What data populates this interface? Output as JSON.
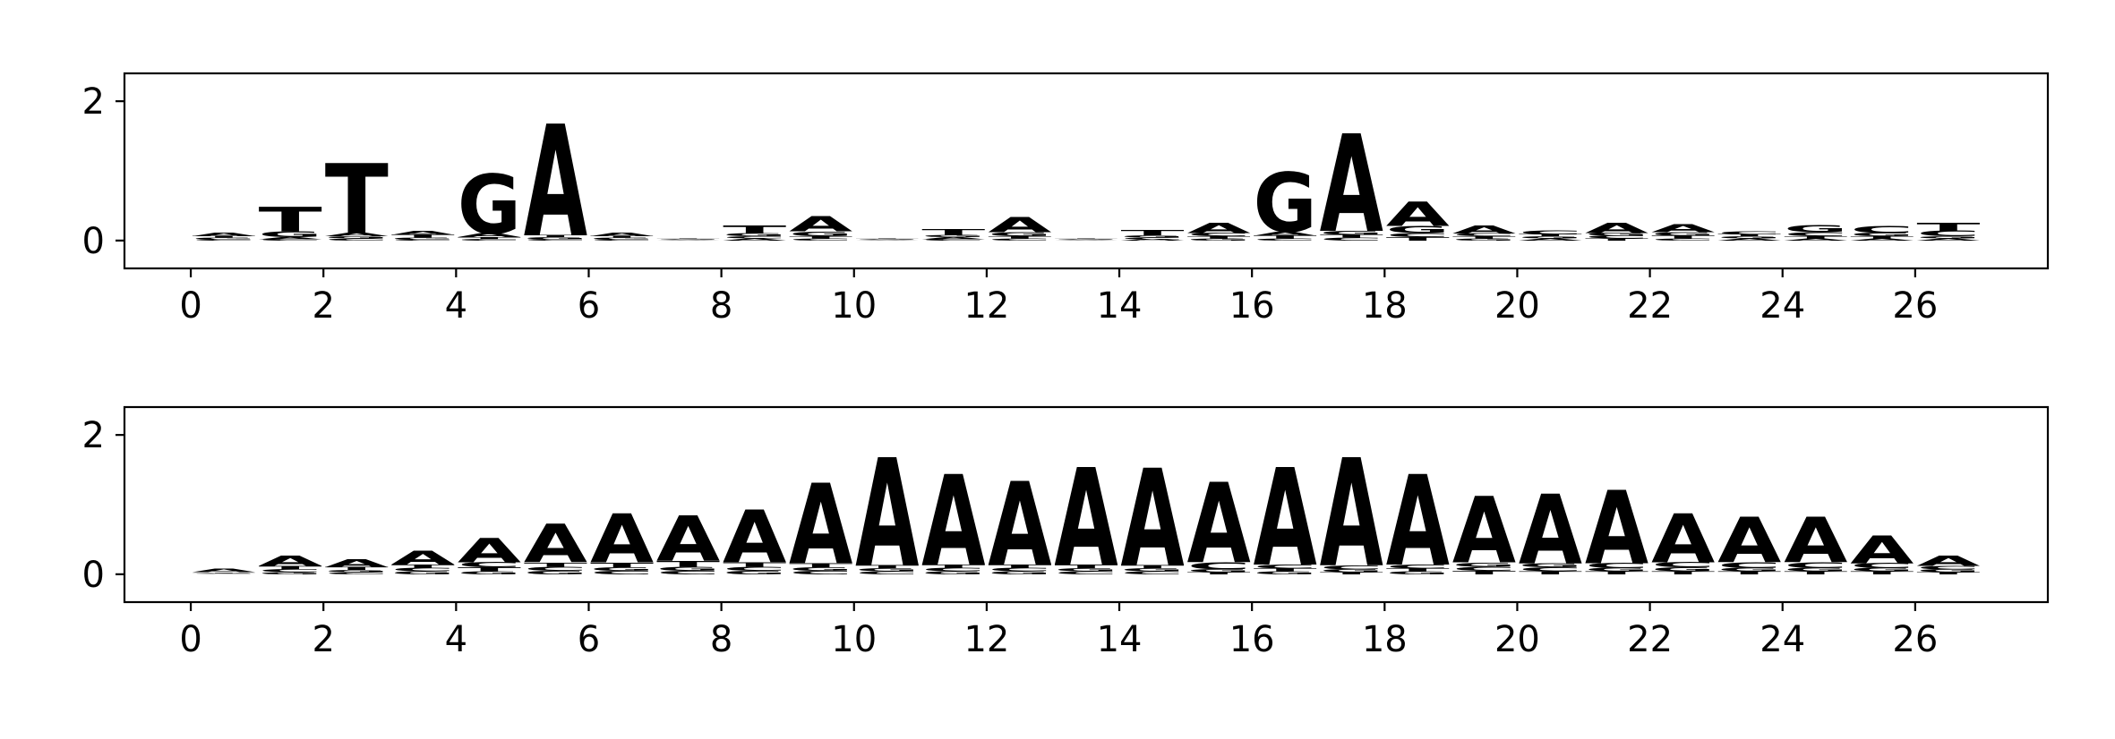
{
  "chart_data": [
    {
      "type": "sequence-logo",
      "title": "",
      "xlabel": "",
      "ylabel": "",
      "xlim": [
        -1,
        28
      ],
      "ylim": [
        -0.4,
        2.4
      ],
      "xticks": [
        0,
        2,
        4,
        6,
        8,
        10,
        12,
        14,
        16,
        18,
        20,
        22,
        24,
        26
      ],
      "yticks": [
        0,
        2
      ],
      "letter_colors": {
        "A": "#008000",
        "C": "#0000ff",
        "G": "#ffa500",
        "T": "#ff0000"
      },
      "positions": [
        {
          "x": 0,
          "A": 0.05,
          "C": 0.02,
          "G": 0.02,
          "T": 0.02
        },
        {
          "x": 1,
          "A": 0.03,
          "C": 0.02,
          "G": 0.08,
          "T": 0.35
        },
        {
          "x": 2,
          "A": 0.05,
          "C": 0.03,
          "G": 0.03,
          "T": 1.0
        },
        {
          "x": 3,
          "A": 0.06,
          "C": 0.02,
          "G": 0.02,
          "T": 0.04
        },
        {
          "x": 4,
          "A": 0.06,
          "C": 0.02,
          "G": 0.85,
          "T": 0.03
        },
        {
          "x": 5,
          "A": 1.6,
          "C": 0.02,
          "G": 0.03,
          "T": 0.03
        },
        {
          "x": 6,
          "A": 0.05,
          "C": 0.02,
          "G": 0.02,
          "T": 0.02
        },
        {
          "x": 7,
          "A": 0.01,
          "C": 0.01,
          "G": 0.01,
          "T": 0.01
        },
        {
          "x": 8,
          "A": 0.03,
          "C": 0.03,
          "G": 0.04,
          "T": 0.12
        },
        {
          "x": 9,
          "A": 0.22,
          "C": 0.03,
          "G": 0.07,
          "T": 0.03
        },
        {
          "x": 10,
          "A": 0.01,
          "C": 0.01,
          "G": 0.01,
          "T": 0.01
        },
        {
          "x": 11,
          "A": 0.03,
          "C": 0.02,
          "G": 0.03,
          "T": 0.08
        },
        {
          "x": 12,
          "A": 0.22,
          "C": 0.03,
          "G": 0.06,
          "T": 0.03
        },
        {
          "x": 13,
          "A": 0.01,
          "C": 0.01,
          "G": 0.01,
          "T": 0.01
        },
        {
          "x": 14,
          "A": 0.02,
          "C": 0.02,
          "G": 0.03,
          "T": 0.08
        },
        {
          "x": 15,
          "A": 0.15,
          "C": 0.05,
          "G": 0.03,
          "T": 0.03
        },
        {
          "x": 16,
          "A": 0.06,
          "C": 0.03,
          "G": 0.85,
          "T": 0.04
        },
        {
          "x": 17,
          "A": 1.4,
          "C": 0.04,
          "G": 0.06,
          "T": 0.04
        },
        {
          "x": 18,
          "A": 0.35,
          "C": 0.06,
          "G": 0.1,
          "T": 0.05
        },
        {
          "x": 19,
          "A": 0.12,
          "C": 0.04,
          "G": 0.03,
          "T": 0.03
        },
        {
          "x": 20,
          "A": 0.03,
          "C": 0.06,
          "G": 0.03,
          "T": 0.03
        },
        {
          "x": 21,
          "A": 0.15,
          "C": 0.04,
          "G": 0.04,
          "T": 0.03
        },
        {
          "x": 22,
          "A": 0.12,
          "C": 0.03,
          "G": 0.05,
          "T": 0.04
        },
        {
          "x": 23,
          "A": 0.03,
          "C": 0.04,
          "G": 0.03,
          "T": 0.03
        },
        {
          "x": 24,
          "A": 0.03,
          "C": 0.06,
          "G": 0.1,
          "T": 0.03
        },
        {
          "x": 25,
          "A": 0.03,
          "C": 0.1,
          "G": 0.05,
          "T": 0.03
        },
        {
          "x": 26,
          "A": 0.03,
          "C": 0.08,
          "G": 0.03,
          "T": 0.12
        }
      ]
    },
    {
      "type": "sequence-logo",
      "title": "",
      "xlabel": "",
      "ylabel": "",
      "xlim": [
        -1,
        28
      ],
      "ylim": [
        -0.4,
        2.4
      ],
      "xticks": [
        0,
        2,
        4,
        6,
        8,
        10,
        12,
        14,
        16,
        18,
        20,
        22,
        24,
        26
      ],
      "yticks": [
        0,
        2
      ],
      "letter_colors": {
        "A": "#008000",
        "C": "#0000ff",
        "G": "#ffa500",
        "T": "#ff0000"
      },
      "positions": [
        {
          "x": 0,
          "A": 0.05,
          "C": 0.01,
          "G": 0.01,
          "T": 0.01
        },
        {
          "x": 1,
          "A": 0.15,
          "C": 0.04,
          "G": 0.03,
          "T": 0.05
        },
        {
          "x": 2,
          "A": 0.12,
          "C": 0.03,
          "G": 0.03,
          "T": 0.04
        },
        {
          "x": 3,
          "A": 0.2,
          "C": 0.05,
          "G": 0.04,
          "T": 0.05
        },
        {
          "x": 4,
          "A": 0.35,
          "C": 0.07,
          "G": 0.04,
          "T": 0.06
        },
        {
          "x": 5,
          "A": 0.55,
          "C": 0.06,
          "G": 0.05,
          "T": 0.06
        },
        {
          "x": 6,
          "A": 0.7,
          "C": 0.05,
          "G": 0.05,
          "T": 0.07
        },
        {
          "x": 7,
          "A": 0.65,
          "C": 0.05,
          "G": 0.06,
          "T": 0.08
        },
        {
          "x": 8,
          "A": 0.75,
          "C": 0.06,
          "G": 0.05,
          "T": 0.07
        },
        {
          "x": 9,
          "A": 1.15,
          "C": 0.05,
          "G": 0.05,
          "T": 0.06
        },
        {
          "x": 10,
          "A": 1.55,
          "C": 0.04,
          "G": 0.04,
          "T": 0.05
        },
        {
          "x": 11,
          "A": 1.3,
          "C": 0.05,
          "G": 0.04,
          "T": 0.05
        },
        {
          "x": 12,
          "A": 1.2,
          "C": 0.05,
          "G": 0.04,
          "T": 0.05
        },
        {
          "x": 13,
          "A": 1.4,
          "C": 0.04,
          "G": 0.04,
          "T": 0.06
        },
        {
          "x": 14,
          "A": 1.4,
          "C": 0.04,
          "G": 0.04,
          "T": 0.05
        },
        {
          "x": 15,
          "A": 1.15,
          "C": 0.1,
          "G": 0.04,
          "T": 0.03
        },
        {
          "x": 16,
          "A": 1.4,
          "C": 0.06,
          "G": 0.04,
          "T": 0.04
        },
        {
          "x": 17,
          "A": 1.55,
          "C": 0.06,
          "G": 0.04,
          "T": 0.03
        },
        {
          "x": 18,
          "A": 1.3,
          "C": 0.06,
          "G": 0.04,
          "T": 0.04
        },
        {
          "x": 19,
          "A": 0.95,
          "C": 0.06,
          "G": 0.06,
          "T": 0.05
        },
        {
          "x": 20,
          "A": 1.0,
          "C": 0.06,
          "G": 0.06,
          "T": 0.04
        },
        {
          "x": 21,
          "A": 1.05,
          "C": 0.07,
          "G": 0.05,
          "T": 0.04
        },
        {
          "x": 22,
          "A": 0.7,
          "C": 0.07,
          "G": 0.06,
          "T": 0.04
        },
        {
          "x": 23,
          "A": 0.65,
          "C": 0.08,
          "G": 0.05,
          "T": 0.04
        },
        {
          "x": 24,
          "A": 0.65,
          "C": 0.08,
          "G": 0.05,
          "T": 0.04
        },
        {
          "x": 25,
          "A": 0.4,
          "C": 0.07,
          "G": 0.05,
          "T": 0.04
        },
        {
          "x": 26,
          "A": 0.15,
          "C": 0.05,
          "G": 0.04,
          "T": 0.03
        }
      ]
    }
  ]
}
